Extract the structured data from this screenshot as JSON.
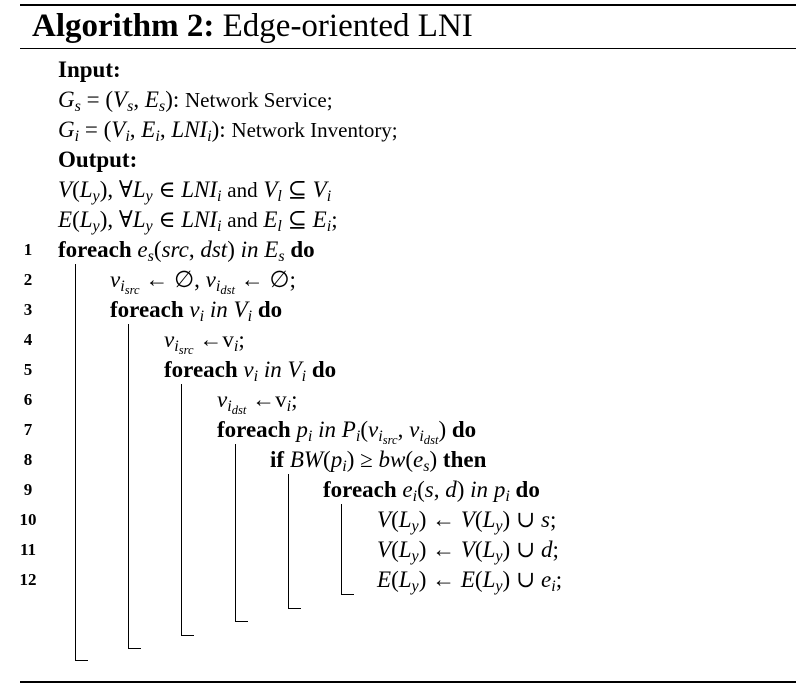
{
  "algorithm": {
    "label": "Algorithm 2:",
    "title": "Edge-oriented LNI",
    "input_label": "Input:",
    "output_label": "Output:",
    "input_gs_desc": "Network Service;",
    "input_gi_desc": "Network Inventory;",
    "kw_foreach": "foreach",
    "kw_do": "do",
    "kw_if": "if",
    "kw_then": "then",
    "kw_and": "and",
    "kw_in": "in",
    "line_numbers": [
      "1",
      "2",
      "3",
      "4",
      "5",
      "6",
      "7",
      "8",
      "9",
      "10",
      "11",
      "12"
    ]
  }
}
